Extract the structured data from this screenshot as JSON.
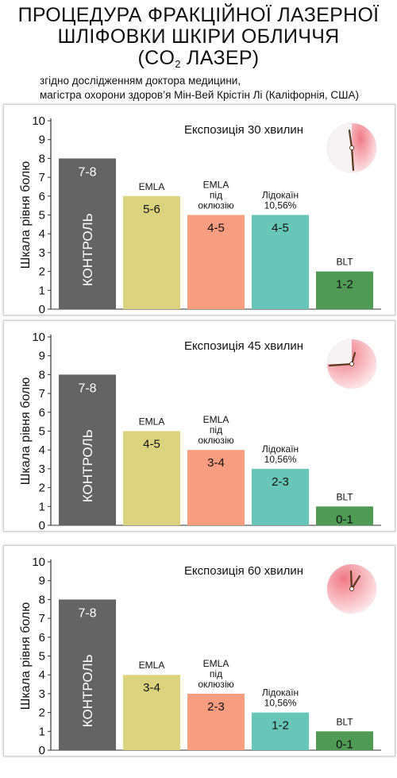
{
  "title": {
    "line1": "ПРОЦЕДУРА ФРАКЦІЙНОЇ ЛАЗЕРНОЇ",
    "line2": "ШЛІФОВКИ ШКІРИ ОБЛИЧЧЯ",
    "line3_pre": "(CO",
    "line3_sub": "2",
    "line3_post": " ЛАЗЕР)"
  },
  "subtitle": {
    "line1": "згідно дослідженням доктора медицини,",
    "line2": "магістра охорони здоров’я Мін-Вей Крістін Лі (Каліфорнія, США)"
  },
  "colors": {
    "control": "#646464",
    "emla": "#dcd37e",
    "emla_occlusion": "#f99d80",
    "lidocaine": "#67c6b8",
    "blt": "#4f9b55",
    "clock_face": "#f07a86"
  },
  "chart_data": [
    {
      "type": "bar",
      "title": "Експозиція 30 хвилин",
      "ylabel": "Шкала рівня болю",
      "ylim": [
        0,
        10
      ],
      "yticks": [
        "0",
        "1",
        "2",
        "3",
        "4",
        "5",
        "6",
        "7",
        "8",
        "9",
        "10"
      ],
      "grid": false,
      "categories": [
        "КОНТРОЛЬ",
        "EMLA",
        "EMLA під оклюзію",
        "Лідокаїн 10,56%",
        "BLT"
      ],
      "category_labels": [
        [
          "КОНТРОЛЬ"
        ],
        [
          "EMLA"
        ],
        [
          "EMLA",
          "під",
          "оклюзію"
        ],
        [
          "Лідокаїн",
          "10,56%"
        ],
        [
          "BLT"
        ]
      ],
      "values": [
        8,
        6,
        5,
        5,
        2
      ],
      "value_labels": [
        "7-8",
        "5-6",
        "4-5",
        "4-5",
        "1-2"
      ],
      "clock_minutes": 30
    },
    {
      "type": "bar",
      "title": "Експозиція 45 хвилин",
      "ylabel": "Шкала рівня болю",
      "ylim": [
        0,
        10
      ],
      "yticks": [
        "0",
        "1",
        "2",
        "3",
        "4",
        "5",
        "6",
        "7",
        "8",
        "9",
        "10"
      ],
      "grid": false,
      "categories": [
        "КОНТРОЛЬ",
        "EMLA",
        "EMLA під оклюзію",
        "Лідокаїн 10,56%",
        "BLT"
      ],
      "category_labels": [
        [
          "КОНТРОЛЬ"
        ],
        [
          "EMLA"
        ],
        [
          "EMLA",
          "під",
          "оклюзію"
        ],
        [
          "Лідокаїн",
          "10,56%"
        ],
        [
          "BLT"
        ]
      ],
      "values": [
        8,
        5,
        4,
        3,
        1
      ],
      "value_labels": [
        "7-8",
        "4-5",
        "3-4",
        "2-3",
        "0-1"
      ],
      "clock_minutes": 45
    },
    {
      "type": "bar",
      "title": "Експозиція 60 хвилин",
      "ylabel": "Шкала рівня болю",
      "ylim": [
        0,
        10
      ],
      "yticks": [
        "0",
        "1",
        "2",
        "3",
        "4",
        "5",
        "6",
        "7",
        "8",
        "9",
        "10"
      ],
      "grid": false,
      "categories": [
        "КОНТРОЛЬ",
        "EMLA",
        "EMLA під оклюзію",
        "Лідокаїн 10,56%",
        "BLT"
      ],
      "category_labels": [
        [
          "КОНТРОЛЬ"
        ],
        [
          "EMLA"
        ],
        [
          "EMLA",
          "під",
          "оклюзію"
        ],
        [
          "Лідокаїн",
          "10,56%"
        ],
        [
          "BLT"
        ]
      ],
      "values": [
        8,
        4,
        3,
        2,
        1
      ],
      "value_labels": [
        "7-8",
        "3-4",
        "2-3",
        "1-2",
        "0-1"
      ],
      "clock_minutes": 60
    }
  ]
}
